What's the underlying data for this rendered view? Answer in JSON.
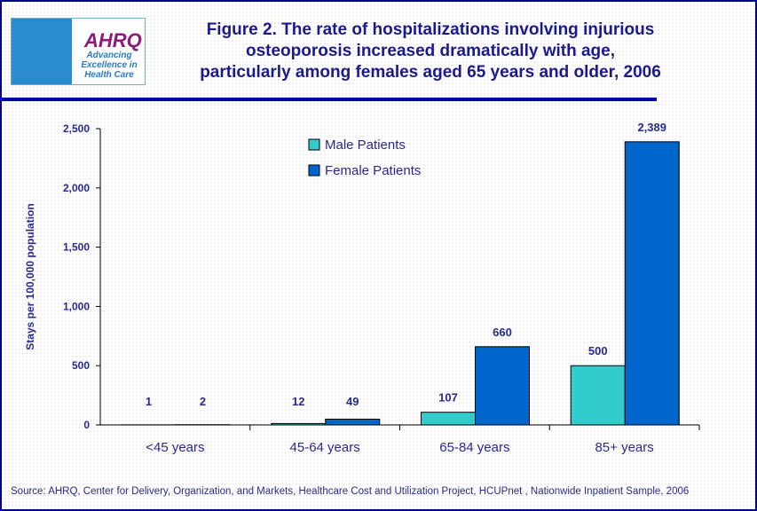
{
  "header": {
    "title": "Figure 2. The rate of hospitalizations involving injurious osteoporosis increased dramatically with age, particularly among females aged 65 years and older, 2006",
    "title_lines": [
      "Figure 2. The rate of hospitalizations involving injurious",
      "osteoporosis increased dramatically with age,",
      "particularly among females aged 65 years and older, 2006"
    ],
    "logo": {
      "text": "AHRQ",
      "tagline": "Advancing Excellence in Health Care"
    }
  },
  "chart_data": {
    "type": "bar",
    "categories": [
      "<45 years",
      "45-64 years",
      "65-84 years",
      "85+ years"
    ],
    "series": [
      {
        "name": "Male Patients",
        "values": [
          1,
          12,
          107,
          500
        ],
        "color": "#33cccc"
      },
      {
        "name": "Female Patients",
        "values": [
          2,
          49,
          660,
          2389
        ],
        "color": "#0066cc"
      }
    ],
    "data_labels": [
      [
        "1",
        "12",
        "107",
        "500"
      ],
      [
        "2",
        "49",
        "660",
        "2,389"
      ]
    ],
    "ylabel": "Stays per 100,000 population",
    "ylim": [
      0,
      2500
    ],
    "yticks": [
      0,
      500,
      1000,
      1500,
      2000,
      2500
    ],
    "ytick_labels": [
      "0",
      "500",
      "1,000",
      "1,500",
      "2,000",
      "2,500"
    ],
    "legend_position": "top-center",
    "grid": false
  },
  "footer": {
    "source": "Source: AHRQ, Center for Delivery, Organization, and Markets, Healthcare Cost and Utilization Project, HCUPnet , Nationwide Inpatient Sample, 2006"
  }
}
